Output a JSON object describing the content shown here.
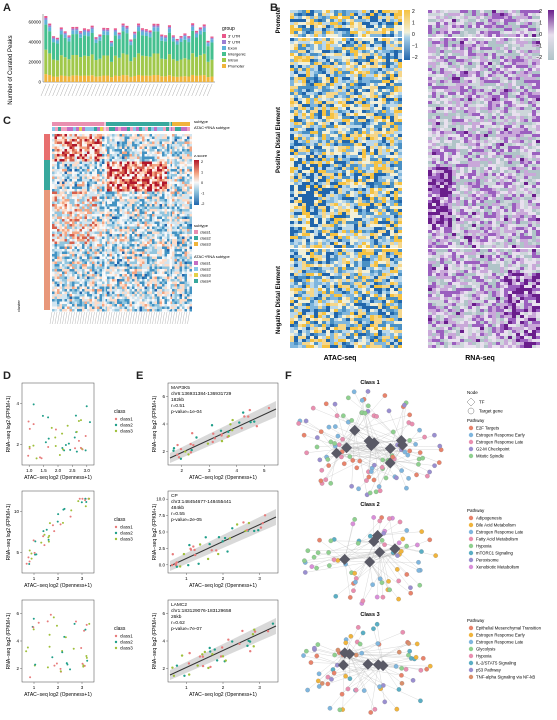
{
  "panels": {
    "A": "A",
    "B": "B",
    "C": "C",
    "D": "D",
    "E": "E",
    "F": "F"
  },
  "panelA": {
    "ylabel": "Number of Curated Peaks",
    "yticks": [
      "0",
      "20000",
      "40000",
      "60000"
    ],
    "legend_title": "group",
    "legend": [
      "3' UTR",
      "5' UTR",
      "Exon",
      "Intergenic",
      "Intron",
      "Promoter"
    ],
    "colors": [
      "#e8578a",
      "#9b7fd4",
      "#5fb3d9",
      "#45c08f",
      "#a0c84a",
      "#f0b43c"
    ]
  },
  "panelB": {
    "row_labels": [
      "Promoter",
      "Positive Distal Element",
      "Negative Distal Element"
    ],
    "col_labels": [
      "ATAC-seq",
      "RNA-seq"
    ],
    "scale1": [
      "2",
      "1",
      "0",
      "−1",
      "−2"
    ],
    "scale2": [
      "2",
      "1",
      "0",
      "−1",
      "−2"
    ]
  },
  "panelC": {
    "legend_subtype": "subtype",
    "legend_atac": "ATAC+RNA subtype",
    "legend_zscore": "z-score",
    "zscore_ticks": [
      "2",
      "1",
      "0",
      "-1",
      "-2"
    ],
    "subtype_title": "subtype",
    "subtype_items": [
      "class1",
      "class2",
      "class3"
    ],
    "atac_title": "ATAC+RNA subtype",
    "atac_items": [
      "class1",
      "class2",
      "class3",
      "class4"
    ],
    "side_label": "cluster"
  },
  "panelD": {
    "xlabel": "ATAC−seq log2 (Openness+1)",
    "ylabel": "RNA−seq log2 (FPKM+1)",
    "legend_title": "class",
    "legend": [
      "class1",
      "class2",
      "class3"
    ],
    "plots": [
      {
        "xticks": [
          "1.0",
          "1.5",
          "2.0",
          "2.5",
          "3.0"
        ],
        "yticks": [
          "2",
          "4"
        ]
      },
      {
        "xticks": [
          "1",
          "2",
          "3"
        ],
        "yticks": [
          "5",
          "10"
        ]
      },
      {
        "xticks": [
          "1",
          "2",
          "3"
        ],
        "yticks": [
          "2",
          "4",
          "6"
        ]
      }
    ]
  },
  "panelE": {
    "xlabel": "ATAC−seq log2 (Openness+1)",
    "ylabel": "RNA−seq log2 (FPKM+1)",
    "plots": [
      {
        "gene": "MAP3K5",
        "region": "chr6:136931384-136931729",
        "dist": "182kb",
        "r": "r=0.51",
        "p": "p-value=1e-04",
        "xticks": [
          "2",
          "3",
          "4",
          "5"
        ],
        "yticks": [
          "2",
          "4",
          "6"
        ]
      },
      {
        "gene": "CP",
        "region": "chr3:148454677-148455441",
        "dist": "484kb",
        "r": "r=0.55",
        "p": "p-value=2e-05",
        "xticks": [
          "1",
          "2",
          "3"
        ],
        "yticks": [
          "0.0",
          "2.5",
          "5.0",
          "7.5",
          "10.0"
        ]
      },
      {
        "gene": "LAMC2",
        "region": "chr1:183129076-183129658",
        "dist": "26kb",
        "r": "r=0.62",
        "p": "p-value=7e-07",
        "xticks": [
          "1",
          "2",
          "3"
        ],
        "yticks": [
          "2",
          "4",
          "6"
        ]
      }
    ]
  },
  "panelF": {
    "class_titles": [
      "Class 1",
      "Class 2",
      "Class 3"
    ],
    "node_title": "Node",
    "node_items": [
      "TF",
      "Target gene"
    ],
    "pathway_title": "Pathway",
    "pathways": [
      [
        {
          "name": "E2F Targets",
          "color": "#e8836b"
        },
        {
          "name": "Estrogen Response Early",
          "color": "#7fb6de"
        },
        {
          "name": "Estrogen Response Late",
          "color": "#e98fb0"
        },
        {
          "name": "G2-M Checkpoint",
          "color": "#9a8fd0"
        },
        {
          "name": "Mitotic Spindle",
          "color": "#8fd08f"
        }
      ],
      [
        {
          "name": "Adipogenesis",
          "color": "#e8836b"
        },
        {
          "name": "Bile Acid Metabolism",
          "color": "#f0b43c"
        },
        {
          "name": "Estrogen Response Late",
          "color": "#7fb6de"
        },
        {
          "name": "Fatty Acid Metabolism",
          "color": "#e98fb0"
        },
        {
          "name": "Hypoxia",
          "color": "#8fd08f"
        },
        {
          "name": "mTORC1 Signaling",
          "color": "#5aaec4"
        },
        {
          "name": "Peroxisome",
          "color": "#9a8fd0"
        },
        {
          "name": "Xenobiotic Metabolism",
          "color": "#d98fd9"
        }
      ],
      [
        {
          "name": "Epithelial Mesenchymal Transition",
          "color": "#e8836b"
        },
        {
          "name": "Estrogen Response Early",
          "color": "#f0b43c"
        },
        {
          "name": "Estrogen Response Late",
          "color": "#7fb6de"
        },
        {
          "name": "Glycolysis",
          "color": "#8fd08f"
        },
        {
          "name": "Hypoxia",
          "color": "#e98fb0"
        },
        {
          "name": "IL-2/STAT5 Signaling",
          "color": "#5aaec4"
        },
        {
          "name": "p53 Pathway",
          "color": "#9a8fd0"
        },
        {
          "name": "TNF-alpha Signaling via NF-kB",
          "color": "#d98f6b"
        }
      ]
    ]
  }
}
